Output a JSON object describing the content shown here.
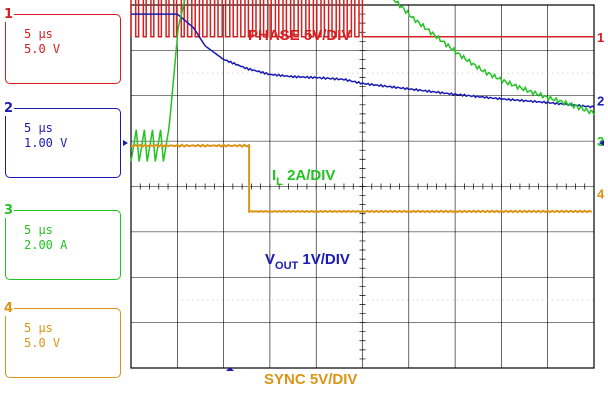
{
  "channels": [
    {
      "num": "1",
      "time": "5 μs",
      "scale": "5.0 V",
      "color": "#d42020"
    },
    {
      "num": "2",
      "time": "5 μs",
      "scale": "1.00 V",
      "color": "#1a1ab4"
    },
    {
      "num": "3",
      "time": "5 μs",
      "scale": "2.00 A",
      "color": "#22c322"
    },
    {
      "num": "4",
      "time": "5 μs",
      "scale": "5.0 V",
      "color": "#dc9414"
    }
  ],
  "chart_data": {
    "type": "line",
    "title": "",
    "xlabel": "",
    "ylabel": "",
    "grid": true,
    "x_divisions": 10,
    "y_divisions": 8,
    "labels": [
      {
        "text": "PHASE 5V/DIV",
        "color": "#d42020"
      },
      {
        "main": "I",
        "sub": "L",
        "rest": " 2A/DIV",
        "color": "#22c322"
      },
      {
        "main": "V",
        "sub": "OUT",
        "rest": " 1V/DIV",
        "color": "#1a1ab4"
      },
      {
        "text": "SYNC 5V/DIV",
        "color": "#dc9414"
      }
    ],
    "series": [
      {
        "channel": "1",
        "x": [
          0,
          0.8,
          0.8,
          10
        ],
        "y": [
          5.3,
          5.3,
          3.3,
          3.3
        ]
      },
      {
        "channel": "2",
        "x": [
          0,
          1.0,
          1.35,
          1.6,
          2.0,
          2.5,
          3.0,
          3.5,
          4.0,
          4.6,
          5.0,
          6.0,
          7.0,
          8.0,
          9.0,
          10
        ],
        "y": [
          3.8,
          3.8,
          3.5,
          3.1,
          2.8,
          2.6,
          2.47,
          2.42,
          2.4,
          2.36,
          2.27,
          2.15,
          2.03,
          1.93,
          1.85,
          1.75
        ]
      },
      {
        "channel": "3",
        "x": [
          0,
          0.75,
          0.85,
          1.02,
          1.25,
          1.4,
          1.7,
          2.0,
          3.0,
          4.0,
          4.5,
          4.6,
          5.1,
          5.6,
          6.1,
          6.6,
          7.1,
          7.6,
          8.1,
          8.6,
          9.1,
          9.6,
          10
        ],
        "y": [
          0.9,
          0.9,
          1.6,
          3.5,
          4.5,
          4.95,
          5.05,
          5.2,
          5.25,
          5.3,
          5.3,
          5.25,
          4.65,
          4.2,
          3.7,
          3.3,
          2.9,
          2.55,
          2.3,
          2.1,
          1.93,
          1.77,
          1.62
        ]
      },
      {
        "channel": "4",
        "x": [
          0,
          2.55,
          2.55,
          10
        ],
        "y": [
          0.9,
          0.9,
          -0.55,
          -0.55
        ]
      }
    ],
    "markers": [
      {
        "text": "1",
        "y": 3.3,
        "color": "#d42020"
      },
      {
        "text": "2",
        "y": 1.9,
        "color": "#1a1ab4"
      },
      {
        "text": "3",
        "y": 1.0,
        "color": "#22c322"
      },
      {
        "text": "4",
        "y": -0.15,
        "color": "#dc9414"
      }
    ]
  }
}
